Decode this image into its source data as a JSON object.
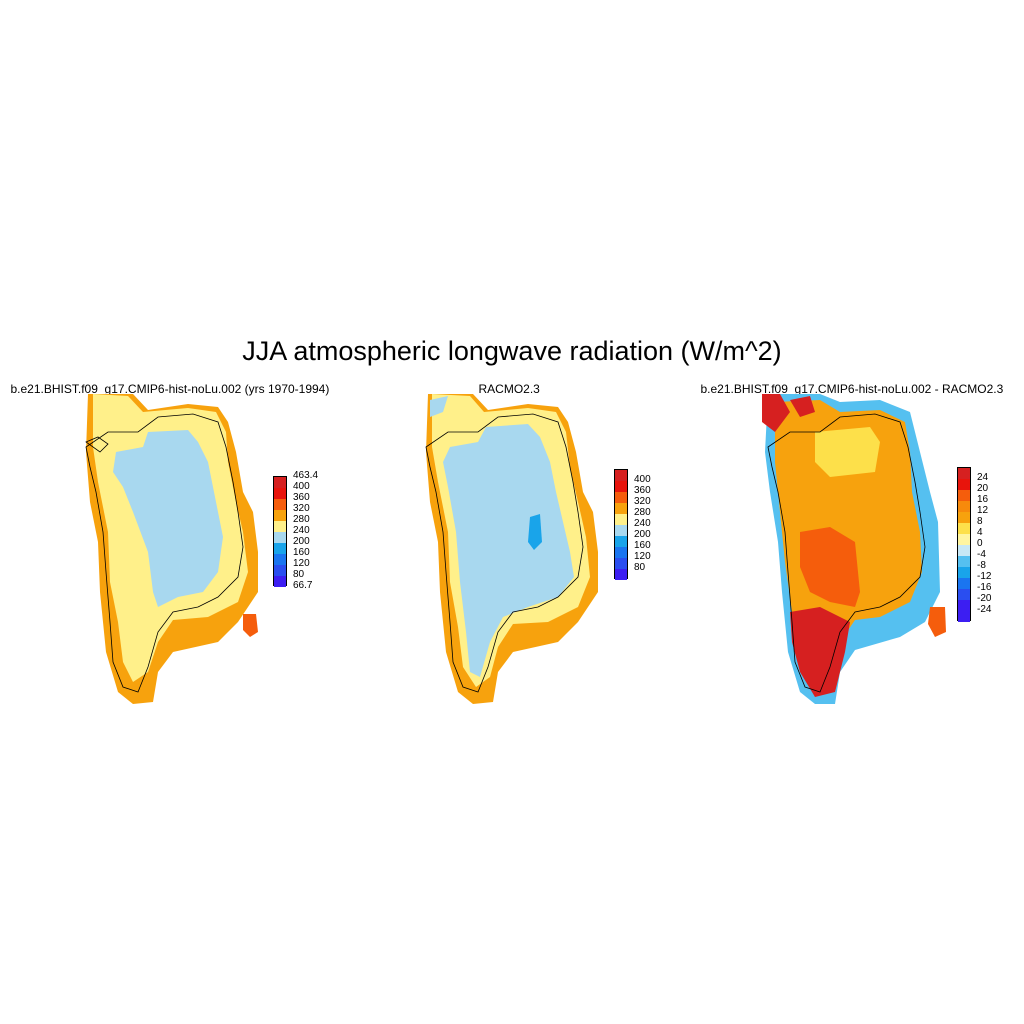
{
  "figure": {
    "title": "JJA atmospheric longwave radiation (W/m^2)"
  },
  "panels": [
    {
      "title": "b.e21.BHIST.f09_g17.CMIP6-hist-noLu.002 (yrs 1970-1994)",
      "colorbar": {
        "labels": [
          "463.4",
          "400",
          "360",
          "320",
          "280",
          "240",
          "200",
          "160",
          "120",
          "80",
          "66.7"
        ],
        "colors": [
          "#d62020",
          "#e8140c",
          "#f55d0c",
          "#f7a20d",
          "#fff08a",
          "#a8d8ef",
          "#19a4ea",
          "#1a75f0",
          "#2a4ef0",
          "#3c1ef2"
        ]
      }
    },
    {
      "title": "RACMO2.3",
      "colorbar": {
        "labels": [
          "400",
          "360",
          "320",
          "280",
          "240",
          "200",
          "160",
          "120",
          "80"
        ],
        "colors": [
          "#d62020",
          "#e8140c",
          "#f55d0c",
          "#f7a20d",
          "#fff08a",
          "#a8d8ef",
          "#19a4ea",
          "#1a75f0",
          "#2a4ef0",
          "#3c1ef2"
        ]
      }
    },
    {
      "title": "b.e21.BHIST.f09_g17.CMIP6-hist-noLu.002 - RACMO2.3",
      "colorbar": {
        "labels": [
          "24",
          "20",
          "16",
          "12",
          "8",
          "4",
          "0",
          "-4",
          "-8",
          "-12",
          "-16",
          "-20",
          "-24"
        ],
        "colors": [
          "#d62020",
          "#e8140c",
          "#f55d0c",
          "#f78a0c",
          "#f7a20d",
          "#fde04a",
          "#fff5a0",
          "#c8e8f5",
          "#55c0f0",
          "#19a4ea",
          "#1a75f0",
          "#2a4ef0",
          "#3c1ef2",
          "#3c1ef2"
        ]
      }
    }
  ]
}
